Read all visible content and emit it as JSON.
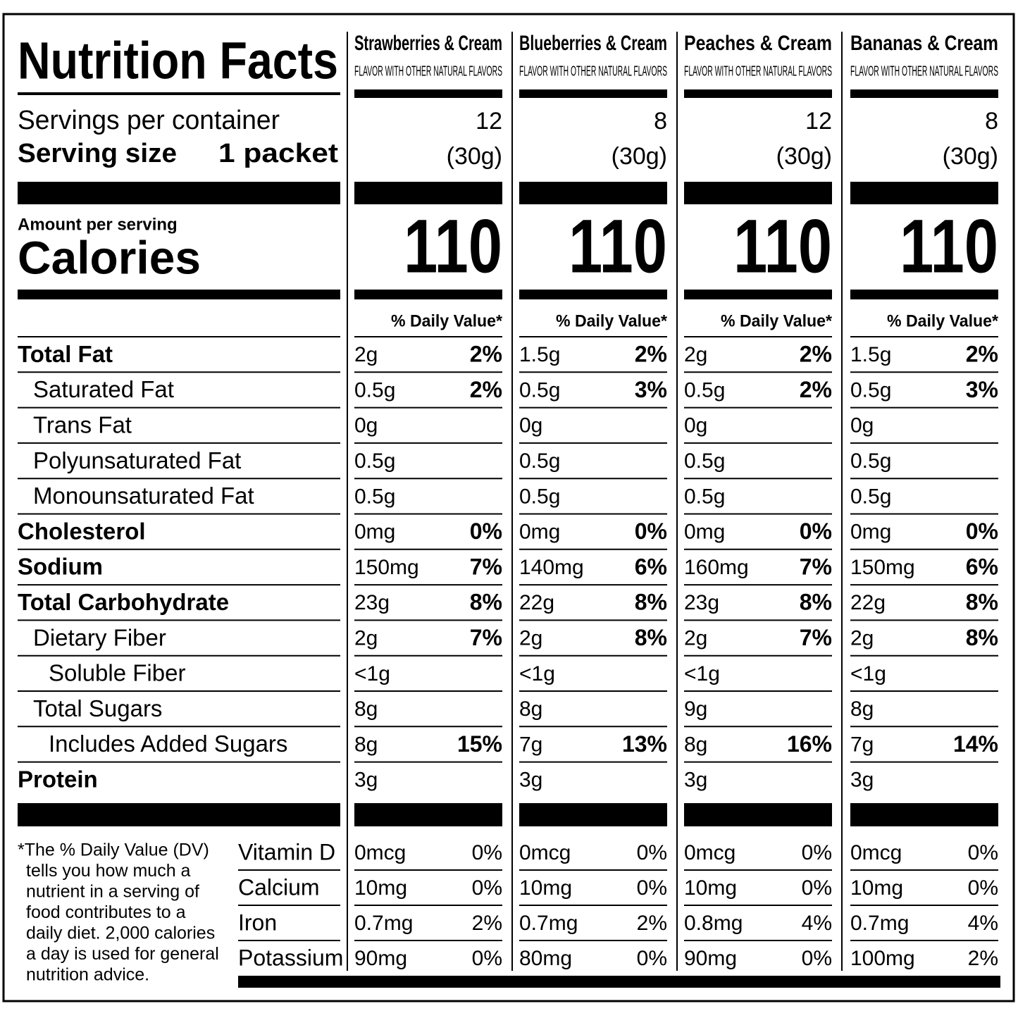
{
  "title": "Nutrition Facts",
  "labels": {
    "servings": "Servings per container",
    "serving_size": "Serving size",
    "serving_size_value": "1 packet",
    "amount_per_serving": "Amount per serving",
    "calories": "Calories",
    "dv_header": "% Daily Value*"
  },
  "products": [
    {
      "name": "Strawberries & Cream",
      "subtitle": "FLAVOR WITH OTHER NATURAL FLAVORS",
      "servings": 12,
      "serving_weight": "(30g)",
      "calories": 110
    },
    {
      "name": "Blueberries & Cream",
      "subtitle": "FLAVOR WITH OTHER NATURAL FLAVORS",
      "servings": 8,
      "serving_weight": "(30g)",
      "calories": 110
    },
    {
      "name": "Peaches & Cream",
      "subtitle": "FLAVOR WITH OTHER NATURAL FLAVORS",
      "servings": 12,
      "serving_weight": "(30g)",
      "calories": 110
    },
    {
      "name": "Bananas & Cream",
      "subtitle": "FLAVOR WITH OTHER NATURAL FLAVORS",
      "servings": 8,
      "serving_weight": "(30g)",
      "calories": 110
    }
  ],
  "nutrients": [
    {
      "name": "Total Fat",
      "bold": true,
      "indent": 0,
      "amounts": [
        "2g",
        "1.5g",
        "2g",
        "1.5g"
      ],
      "dv": [
        "2%",
        "2%",
        "2%",
        "2%"
      ]
    },
    {
      "name": "Saturated Fat",
      "bold": false,
      "indent": 1,
      "amounts": [
        "0.5g",
        "0.5g",
        "0.5g",
        "0.5g"
      ],
      "dv": [
        "2%",
        "3%",
        "2%",
        "3%"
      ]
    },
    {
      "name": "Trans Fat",
      "bold": false,
      "indent": 1,
      "amounts": [
        "0g",
        "0g",
        "0g",
        "0g"
      ]
    },
    {
      "name": "Polyunsaturated Fat",
      "bold": false,
      "indent": 1,
      "amounts": [
        "0.5g",
        "0.5g",
        "0.5g",
        "0.5g"
      ]
    },
    {
      "name": "Monounsaturated Fat",
      "bold": false,
      "indent": 1,
      "amounts": [
        "0.5g",
        "0.5g",
        "0.5g",
        "0.5g"
      ]
    },
    {
      "name": "Cholesterol",
      "bold": true,
      "indent": 0,
      "amounts": [
        "0mg",
        "0mg",
        "0mg",
        "0mg"
      ],
      "dv": [
        "0%",
        "0%",
        "0%",
        "0%"
      ]
    },
    {
      "name": "Sodium",
      "bold": true,
      "indent": 0,
      "amounts": [
        "150mg",
        "140mg",
        "160mg",
        "150mg"
      ],
      "dv": [
        "7%",
        "6%",
        "7%",
        "6%"
      ]
    },
    {
      "name": "Total Carbohydrate",
      "bold": true,
      "indent": 0,
      "amounts": [
        "23g",
        "22g",
        "23g",
        "22g"
      ],
      "dv": [
        "8%",
        "8%",
        "8%",
        "8%"
      ]
    },
    {
      "name": "Dietary Fiber",
      "bold": false,
      "indent": 1,
      "amounts": [
        "2g",
        "2g",
        "2g",
        "2g"
      ],
      "dv": [
        "7%",
        "8%",
        "7%",
        "8%"
      ]
    },
    {
      "name": "Soluble Fiber",
      "bold": false,
      "indent": 2,
      "amounts": [
        "<1g",
        "<1g",
        "<1g",
        "<1g"
      ]
    },
    {
      "name": "Total Sugars",
      "bold": false,
      "indent": 1,
      "amounts": [
        "8g",
        "8g",
        "9g",
        "8g"
      ]
    },
    {
      "name": "Includes Added Sugars",
      "bold": false,
      "indent": 2,
      "amounts": [
        "8g",
        "7g",
        "8g",
        "7g"
      ],
      "dv": [
        "15%",
        "13%",
        "16%",
        "14%"
      ]
    },
    {
      "name": "Protein",
      "bold": true,
      "indent": 0,
      "amounts": [
        "3g",
        "3g",
        "3g",
        "3g"
      ]
    }
  ],
  "vitamins": [
    {
      "name": "Vitamin D",
      "amounts": [
        "0mcg",
        "0mcg",
        "0mcg",
        "0mcg"
      ],
      "dv": [
        "0%",
        "0%",
        "0%",
        "0%"
      ]
    },
    {
      "name": "Calcium",
      "amounts": [
        "10mg",
        "10mg",
        "10mg",
        "10mg"
      ],
      "dv": [
        "0%",
        "0%",
        "0%",
        "0%"
      ]
    },
    {
      "name": "Iron",
      "amounts": [
        "0.7mg",
        "0.7mg",
        "0.8mg",
        "0.7mg"
      ],
      "dv": [
        "2%",
        "2%",
        "4%",
        "4%"
      ]
    },
    {
      "name": "Potassium",
      "amounts": [
        "90mg",
        "80mg",
        "90mg",
        "100mg"
      ],
      "dv": [
        "0%",
        "0%",
        "0%",
        "2%"
      ]
    }
  ],
  "footnote": [
    "*The % Daily Value (DV)",
    "tells you how much a",
    "nutrient in a serving of",
    "food contributes to a",
    "daily diet. 2,000 calories",
    "a day is used for general",
    "nutrition advice."
  ]
}
